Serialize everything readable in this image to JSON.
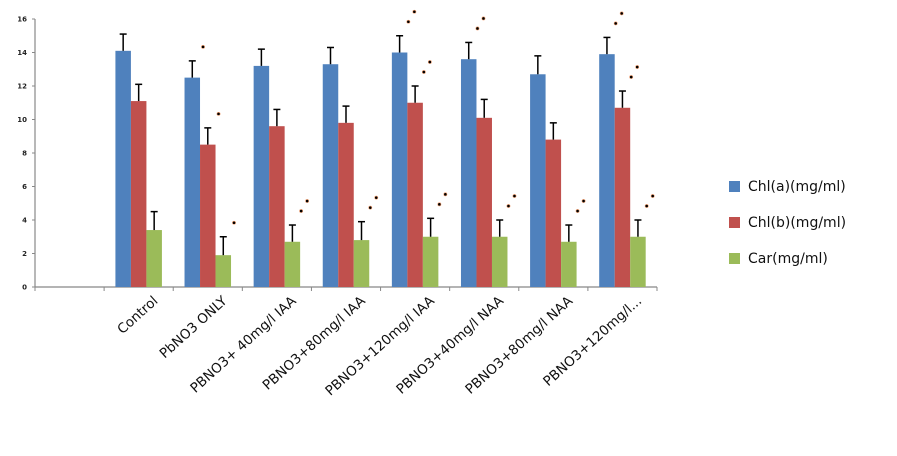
{
  "chart_data": {
    "type": "bar",
    "title": "",
    "xlabel": "",
    "ylabel": "",
    "ylim": [
      0,
      16
    ],
    "yticks": [
      "0",
      "2",
      "4",
      "6",
      "8",
      "10",
      "12",
      "14",
      "16"
    ],
    "categories": [
      "",
      "Control",
      "PbNO3 ONLY",
      "PBNO3+ 40mg/l IAA",
      "PBNO3+80mg/l IAA",
      "PBNO3+120mg/l IAA",
      "PBNO3+40mg/l NAA",
      "PBNO3+80mg/l NAA",
      "PBNO3+120mg/l..."
    ],
    "series": [
      {
        "name": "Chl(a)(mg/ml)",
        "color": "#4F81BD",
        "values": [
          null,
          14.1,
          12.5,
          13.2,
          13.3,
          14.0,
          13.6,
          12.7,
          13.9
        ],
        "errors": [
          null,
          1.0,
          1.0,
          1.0,
          1.0,
          1.0,
          1.0,
          1.1,
          1.0
        ],
        "significance_marks": [
          0,
          0,
          1,
          0,
          0,
          2,
          2,
          0,
          2
        ]
      },
      {
        "name": "Chl(b)(mg/ml)",
        "color": "#C0504D",
        "values": [
          null,
          11.1,
          8.5,
          9.6,
          9.8,
          11.0,
          10.1,
          8.8,
          10.7
        ],
        "errors": [
          null,
          1.0,
          1.0,
          1.0,
          1.0,
          1.0,
          1.1,
          1.0,
          1.0
        ],
        "significance_marks": [
          0,
          0,
          1,
          0,
          0,
          2,
          0,
          0,
          2
        ]
      },
      {
        "name": "Car(mg/ml)",
        "color": "#9BBB59",
        "values": [
          null,
          3.4,
          1.9,
          2.7,
          2.8,
          3.0,
          3.0,
          2.7,
          3.0
        ],
        "errors": [
          null,
          1.1,
          1.1,
          1.0,
          1.1,
          1.1,
          1.0,
          1.0,
          1.0
        ],
        "significance_marks": [
          0,
          0,
          1,
          2,
          2,
          2,
          2,
          2,
          2
        ]
      }
    ],
    "legend_position": "right",
    "grid": false
  }
}
